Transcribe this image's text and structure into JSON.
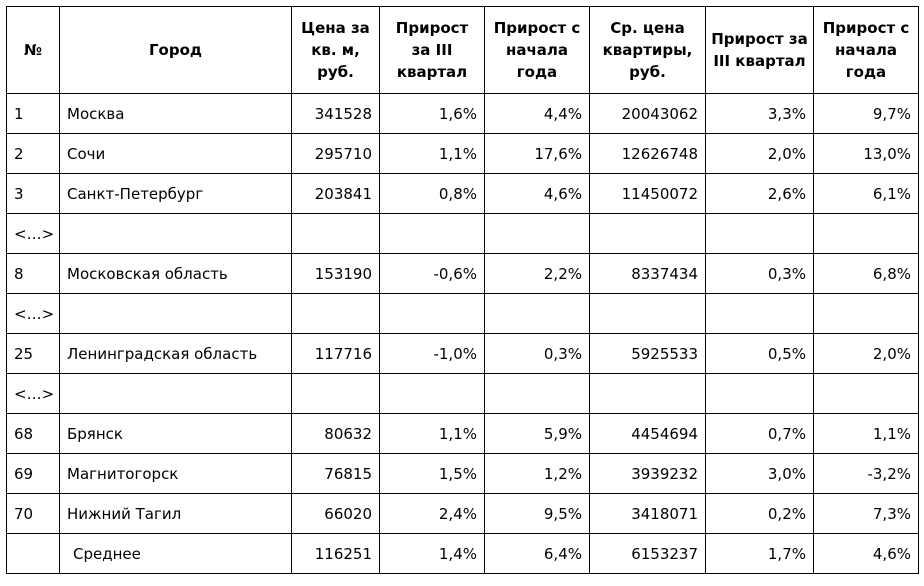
{
  "table": {
    "headers": [
      "№",
      "Город",
      "Цена за кв. м, руб.",
      "Прирост за III квартал",
      "Прирост с начала года",
      "Ср. цена квартиры, руб.",
      "Прирост за III квартал",
      "Прирост с начала года"
    ],
    "rows": [
      [
        "1",
        "Москва",
        "341528",
        "1,6%",
        "4,4%",
        "20043062",
        "3,3%",
        "9,7%"
      ],
      [
        "2",
        "Сочи",
        "295710",
        "1,1%",
        "17,6%",
        "12626748",
        "2,0%",
        "13,0%"
      ],
      [
        "3",
        "Санкт-Петербург",
        "203841",
        "0,8%",
        "4,6%",
        "11450072",
        "2,6%",
        "6,1%"
      ],
      [
        "<…>",
        "",
        "",
        "",
        "",
        "",
        "",
        ""
      ],
      [
        "8",
        "Московская область",
        "153190",
        "-0,6%",
        "2,2%",
        "8337434",
        "0,3%",
        "6,8%"
      ],
      [
        "<…>",
        "",
        "",
        "",
        "",
        "",
        "",
        ""
      ],
      [
        "25",
        "Ленинградская область",
        "117716",
        "-1,0%",
        "0,3%",
        "5925533",
        "0,5%",
        "2,0%"
      ],
      [
        "<…>",
        "",
        "",
        "",
        "",
        "",
        "",
        ""
      ],
      [
        "68",
        "Брянск",
        "80632",
        "1,1%",
        "5,9%",
        "4454694",
        "0,7%",
        "1,1%"
      ],
      [
        "69",
        "Магнитогорск",
        "76815",
        "1,5%",
        "1,2%",
        "3939232",
        "3,0%",
        "-3,2%"
      ],
      [
        "70",
        "Нижний Тагил",
        "66020",
        "2,4%",
        "9,5%",
        "3418071",
        "0,2%",
        "7,3%"
      ],
      [
        "",
        "Среднее",
        "116251",
        "1,4%",
        "6,4%",
        "6153237",
        "1,7%",
        "4,6%"
      ]
    ]
  }
}
